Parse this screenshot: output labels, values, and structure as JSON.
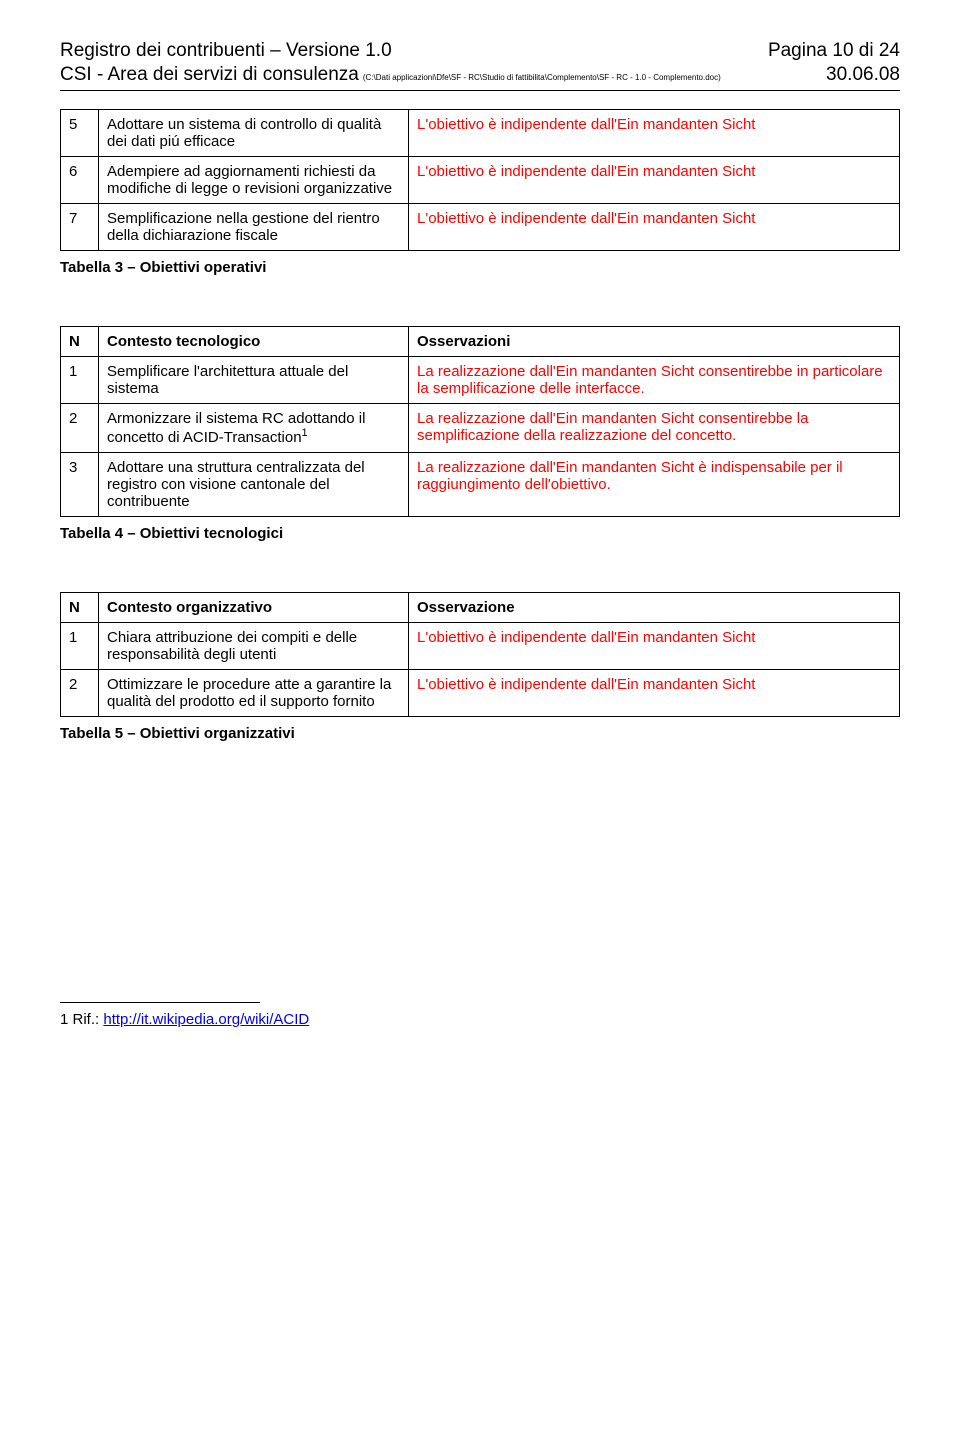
{
  "header": {
    "title_left": "Registro dei contribuenti – Versione 1.0",
    "title_right": "Pagina 10 di 24",
    "sub_left": "CSI - Area dei servizi di consulenza",
    "sub_path": "(C:\\Dati applicazioni\\Dfe\\SF - RC\\Studio di fattibilita\\Complemento\\SF - RC - 1.0 - Complemento.doc)",
    "sub_right": "30.06.08"
  },
  "table3": {
    "rows": [
      {
        "n": "5",
        "left": "Adottare un sistema di controllo di qualità dei dati piú efficace",
        "right": "L'obiettivo è indipendente dall'Ein mandanten Sicht"
      },
      {
        "n": "6",
        "left": "Adempiere ad aggiornamenti richiesti da modifiche di legge o revisioni organizzative",
        "right": "L'obiettivo è indipendente dall'Ein mandanten Sicht"
      },
      {
        "n": "7",
        "left": "Semplificazione nella gestione del rientro della dichiarazione fiscale",
        "right": "L'obiettivo è indipendente dall'Ein mandanten Sicht"
      }
    ],
    "caption": "Tabella 3 – Obiettivi operativi"
  },
  "table4": {
    "header": {
      "n": "N",
      "left": "Contesto tecnologico",
      "right": "Osservazioni"
    },
    "rows": [
      {
        "n": "1",
        "left": "Semplificare l'architettura attuale del sistema",
        "right": "La realizzazione dall'Ein mandanten Sicht consentirebbe in particolare la semplificazione delle interfacce."
      },
      {
        "n": "2",
        "left_pre": "Armonizzare il sistema RC adottando il concetto di ACID-Transaction",
        "left_sup": "1",
        "right": "La realizzazione dall'Ein mandanten Sicht consentirebbe la semplificazione della realizzazione del concetto."
      },
      {
        "n": "3",
        "left": "Adottare una struttura centralizzata del registro con visione cantonale del contribuente",
        "right": "La realizzazione dall'Ein mandanten Sicht è indispensabile per il raggiungimento dell'obiettivo."
      }
    ],
    "caption": "Tabella 4 – Obiettivi tecnologici"
  },
  "table5": {
    "header": {
      "n": "N",
      "left": "Contesto organizzativo",
      "right": "Osservazione"
    },
    "rows": [
      {
        "n": "1",
        "left": "Chiara attribuzione dei compiti e delle responsabilità degli utenti",
        "right": "L'obiettivo è indipendente dall'Ein mandanten Sicht"
      },
      {
        "n": "2",
        "left": "Ottimizzare le procedure atte a garantire la qualità del prodotto ed il supporto fornito",
        "right": "L'obiettivo è indipendente dall'Ein mandanten Sicht"
      }
    ],
    "caption": "Tabella 5 – Obiettivi organizzativi"
  },
  "footnote": {
    "marker": "1",
    "prefix": " Rif.: ",
    "link_text": "http://it.wikipedia.org/wiki/ACID"
  },
  "colors": {
    "text": "#000000",
    "red": "#ff0000",
    "link": "#0000ee",
    "border": "#000000",
    "background": "#ffffff"
  }
}
